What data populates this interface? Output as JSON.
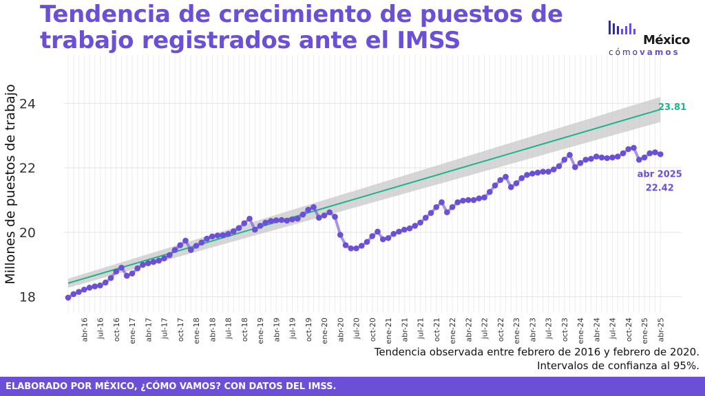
{
  "title": "Tendencia de crecimiento de puestos de trabajo registrados ante el IMSS",
  "logo": {
    "name": "México",
    "sub1": "cómo",
    "sub2": "vamos"
  },
  "note_lines": [
    "Tendencia observada entre febrero de 2016 y febrero de 2020.",
    "Intervalos de confianza al 95%."
  ],
  "footer": "ELABORADO POR MÉXICO, ¿CÓMO VAMOS? CON DATOS DEL IMSS.",
  "colors": {
    "accent": "#6b4fd6",
    "series": "#6b4fd6",
    "trend": "#19b48a",
    "band": "#c8c8c8"
  },
  "chart_data": {
    "type": "line",
    "ylabel": "Millones de puestos de trabajo",
    "ylim": [
      17.5,
      25.5
    ],
    "yticks": [
      18,
      20,
      22,
      24
    ],
    "grid": true,
    "x_start": "2016-01",
    "xticks": [
      "abr-16",
      "jul-16",
      "oct-16",
      "ene-17",
      "abr-17",
      "jul-17",
      "oct-17",
      "ene-18",
      "abr-18",
      "jul-18",
      "oct-18",
      "ene-19",
      "abr-19",
      "jul-19",
      "oct-19",
      "ene-20",
      "abr-20",
      "jul-20",
      "oct-20",
      "ene-21",
      "abr-21",
      "jul-21",
      "oct-21",
      "ene-22",
      "abr-22",
      "jul-22",
      "oct-22",
      "ene-23",
      "abr-23",
      "jul-23",
      "oct-23",
      "ene-24",
      "abr-24",
      "jul-24",
      "oct-24",
      "ene-25",
      "abr-25"
    ],
    "series": [
      {
        "name": "",
        "values": [
          17.97,
          18.08,
          18.15,
          18.22,
          18.28,
          18.32,
          18.35,
          18.44,
          18.58,
          18.78,
          18.9,
          18.65,
          18.72,
          18.88,
          18.99,
          19.04,
          19.08,
          19.12,
          19.19,
          19.29,
          19.45,
          19.6,
          19.74,
          19.45,
          19.58,
          19.68,
          19.8,
          19.87,
          19.9,
          19.91,
          19.95,
          20.03,
          20.13,
          20.28,
          20.42,
          20.08,
          20.2,
          20.3,
          20.35,
          20.37,
          20.38,
          20.36,
          20.4,
          20.42,
          20.55,
          20.7,
          20.78,
          20.45,
          20.52,
          20.62,
          20.48,
          19.92,
          19.6,
          19.5,
          19.5,
          19.58,
          19.7,
          19.88,
          20.02,
          19.78,
          19.82,
          19.95,
          20.02,
          20.08,
          20.12,
          20.2,
          20.3,
          20.45,
          20.6,
          20.78,
          20.93,
          20.62,
          20.78,
          20.93,
          20.98,
          21.0,
          21.0,
          21.05,
          21.08,
          21.25,
          21.45,
          21.62,
          21.72,
          21.4,
          21.52,
          21.68,
          21.78,
          21.82,
          21.85,
          21.88,
          21.88,
          21.95,
          22.05,
          22.25,
          22.4,
          22.02,
          22.15,
          22.25,
          22.28,
          22.35,
          22.32,
          22.3,
          22.32,
          22.35,
          22.45,
          22.58,
          22.62,
          22.25,
          22.32,
          22.45,
          22.48,
          22.42
        ]
      }
    ],
    "trend": {
      "start": 18.42,
      "end": 23.81,
      "ci_start": [
        18.28,
        18.56
      ],
      "ci_end": [
        23.42,
        24.2
      ]
    },
    "annotations": {
      "trend_end_label": "23.81",
      "last_date_label": "abr 2025",
      "last_value_label": "22.42"
    }
  }
}
